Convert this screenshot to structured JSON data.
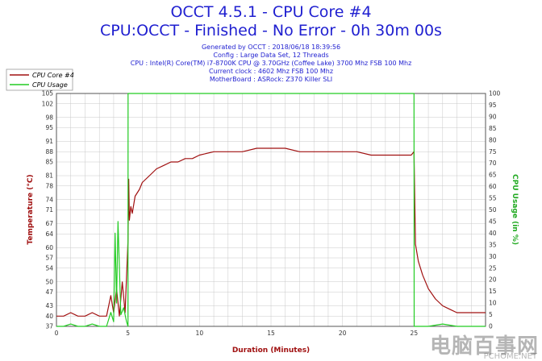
{
  "header": {
    "title_line1": "OCCT 4.5.1 - CPU Core #4",
    "title_line2": "CPU:OCCT - Finished - No Error - 0h 30m 00s",
    "info_lines": [
      "Generated by OCCT : 2018/06/18 18:39:56",
      "Config : Large Data Set, 12 Threads",
      "CPU : Intel(R) Core(TM) i7-8700K CPU @ 3.70GHz (Coffee Lake) 3700 Mhz FSB 100 Mhz",
      "Current clock : 4602 Mhz FSB 100 Mhz",
      "MotherBoard : ASRock: Z370 Killer SLI"
    ]
  },
  "watermark": "电脑百事网",
  "watermark_sub": "PCHOME.NET",
  "colors": {
    "temp": "#a01010",
    "usage": "#22cc22",
    "title": "#1f1fd0",
    "grid": "#c8c8c8"
  },
  "chart_data": {
    "type": "line",
    "xlabel": "Duration (Minutes)",
    "ylabel_left": "Temperature (°C)",
    "ylabel_right": "CPU Usage (in %)",
    "xlim": [
      0,
      30
    ],
    "x_ticks": [
      0,
      5,
      10,
      15,
      20,
      25
    ],
    "ylim_left": [
      37,
      105
    ],
    "y_ticks_left": [
      37,
      40,
      43,
      47,
      50,
      54,
      57,
      60,
      64,
      67,
      71,
      74,
      78,
      81,
      85,
      88,
      91,
      95,
      98,
      102,
      105
    ],
    "ylim_right": [
      0,
      100
    ],
    "y_ticks_right": [
      0,
      5,
      10,
      15,
      20,
      25,
      30,
      35,
      40,
      45,
      50,
      55,
      60,
      65,
      70,
      75,
      80,
      85,
      90,
      95,
      100
    ],
    "grid": true,
    "legend_position": "top-left",
    "series": [
      {
        "name": "CPU Core #4",
        "axis": "left",
        "x": [
          0,
          0.5,
          1,
          1.5,
          2,
          2.5,
          3,
          3.5,
          3.8,
          4,
          4.2,
          4.4,
          4.6,
          4.8,
          5,
          5.05,
          5.1,
          5.2,
          5.3,
          5.5,
          5.8,
          6,
          6.5,
          7,
          7.5,
          8,
          8.5,
          9,
          9.5,
          10,
          11,
          12,
          13,
          14,
          15,
          16,
          17,
          18,
          19,
          20,
          21,
          22,
          23,
          24,
          24.8,
          25,
          25.1,
          25.3,
          25.6,
          26,
          26.5,
          27,
          27.5,
          28,
          28.5,
          29,
          29.5,
          30
        ],
        "y": [
          40,
          40,
          41,
          40,
          40,
          41,
          40,
          40,
          46,
          41,
          48,
          40,
          50,
          41,
          62,
          80,
          68,
          72,
          70,
          75,
          77,
          79,
          81,
          83,
          84,
          85,
          85,
          86,
          86,
          87,
          88,
          88,
          88,
          89,
          89,
          89,
          88,
          88,
          88,
          88,
          88,
          87,
          87,
          87,
          87,
          88,
          61,
          56,
          52,
          48,
          45,
          43,
          42,
          41,
          41,
          41,
          41,
          41
        ]
      },
      {
        "name": "CPU Usage",
        "axis": "right",
        "x": [
          0,
          0.5,
          1,
          1.5,
          2,
          2.5,
          3,
          3.5,
          3.8,
          4,
          4.1,
          4.2,
          4.3,
          4.5,
          4.7,
          4.9,
          5,
          5.01,
          15,
          24.99,
          25,
          25.01,
          26,
          27,
          28,
          29,
          30
        ],
        "y": [
          0,
          0,
          1,
          0,
          0,
          1,
          0,
          0,
          6,
          2,
          40,
          10,
          45,
          5,
          8,
          2,
          0,
          100,
          100,
          100,
          100,
          0,
          0,
          1,
          0,
          0,
          0
        ]
      }
    ]
  }
}
